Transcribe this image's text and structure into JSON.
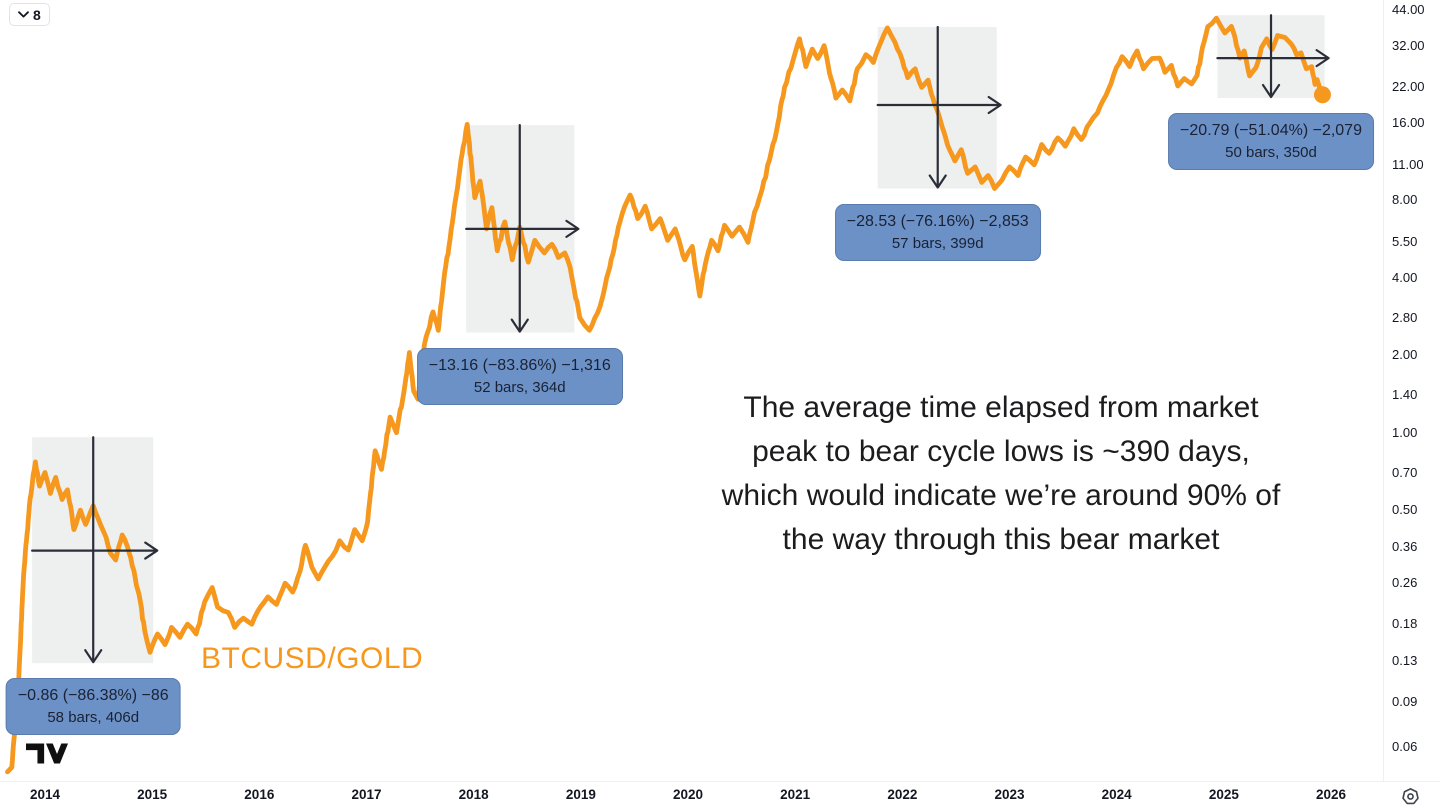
{
  "toolbar": {
    "badge": "8"
  },
  "annotations": {
    "symbol_label": "BTCUSD/GOLD",
    "note_lines": [
      "The average time elapsed from market",
      "peak to bear cycle lows is ~390 days,",
      "which would indicate we’re around 90% of",
      "the way through this bear market"
    ]
  },
  "measurements": [
    {
      "line1": "−0.86 (−86.38%) −86",
      "line2": "58 bars, 406d",
      "x1": 2013.88,
      "x2": 2015.01,
      "price_top": 0.96,
      "price_bottom": 0.127,
      "vline_year": 2014.45,
      "hline_price": 0.348
    },
    {
      "line1": "−13.16 (−83.86%) −1,316",
      "line2": "52 bars, 364d",
      "x1": 2017.93,
      "x2": 2018.94,
      "price_top": 15.7,
      "price_bottom": 2.45,
      "vline_year": 2018.43,
      "hline_price": 6.2
    },
    {
      "line1": "−28.53 (−76.16%) −2,853",
      "line2": "57 bars, 399d",
      "x1": 2021.77,
      "x2": 2022.88,
      "price_top": 37.8,
      "price_bottom": 8.9,
      "vline_year": 2022.33,
      "hline_price": 18.8
    },
    {
      "line1": "−20.79 (−51.04%) −2,079",
      "line2": "50 bars, 350d",
      "x1": 2024.94,
      "x2": 2025.94,
      "price_top": 42.0,
      "price_bottom": 20.0,
      "vline_year": 2025.44,
      "hline_price": 28.6
    }
  ],
  "colors": {
    "series": "#f5981d",
    "label_bg": "#6b91c7",
    "label_text": "#1b2133",
    "arrow": "#2a2e39",
    "region_fill": "rgba(30,34,45,0.075)",
    "axis_text": "#131722"
  },
  "chart_data": {
    "type": "line",
    "title": "",
    "xlabel": "",
    "ylabel": "",
    "scale": "log",
    "grid": false,
    "legend_position": "none",
    "x_range": [
      2013.6,
      2026.45
    ],
    "y_range": [
      0.05,
      47
    ],
    "x_ticks": [
      {
        "label": "2014",
        "value": 2014
      },
      {
        "label": "2015",
        "value": 2015
      },
      {
        "label": "2016",
        "value": 2016
      },
      {
        "label": "2017",
        "value": 2017
      },
      {
        "label": "2018",
        "value": 2018
      },
      {
        "label": "2019",
        "value": 2019
      },
      {
        "label": "2020",
        "value": 2020
      },
      {
        "label": "2021",
        "value": 2021
      },
      {
        "label": "2022",
        "value": 2022
      },
      {
        "label": "2023",
        "value": 2023
      },
      {
        "label": "2024",
        "value": 2024
      },
      {
        "label": "2025",
        "value": 2025
      },
      {
        "label": "2026",
        "value": 2026
      }
    ],
    "y_ticks": [
      {
        "label": "44.00",
        "value": 44
      },
      {
        "label": "32.00",
        "value": 32
      },
      {
        "label": "22.00",
        "value": 22
      },
      {
        "label": "16.00",
        "value": 16
      },
      {
        "label": "11.00",
        "value": 11
      },
      {
        "label": "8.00",
        "value": 8
      },
      {
        "label": "5.50",
        "value": 5.5
      },
      {
        "label": "4.00",
        "value": 4
      },
      {
        "label": "2.80",
        "value": 2.8
      },
      {
        "label": "2.00",
        "value": 2
      },
      {
        "label": "1.40",
        "value": 1.4
      },
      {
        "label": "1.00",
        "value": 1
      },
      {
        "label": "0.70",
        "value": 0.7
      },
      {
        "label": "0.50",
        "value": 0.5
      },
      {
        "label": "0.36",
        "value": 0.36
      },
      {
        "label": "0.26",
        "value": 0.26
      },
      {
        "label": "0.18",
        "value": 0.18
      },
      {
        "label": "0.13",
        "value": 0.13
      },
      {
        "label": "0.09",
        "value": 0.09
      },
      {
        "label": "0.06",
        "value": 0.06
      }
    ],
    "series": [
      {
        "name": "BTCUSD/GOLD",
        "color": "#f5981d",
        "points": [
          [
            2013.65,
            0.048
          ],
          [
            2013.69,
            0.05
          ],
          [
            2013.75,
            0.1
          ],
          [
            2013.8,
            0.28
          ],
          [
            2013.86,
            0.55
          ],
          [
            2013.91,
            0.77
          ],
          [
            2013.95,
            0.62
          ],
          [
            2014.0,
            0.7
          ],
          [
            2014.05,
            0.58
          ],
          [
            2014.1,
            0.67
          ],
          [
            2014.16,
            0.55
          ],
          [
            2014.21,
            0.6
          ],
          [
            2014.27,
            0.42
          ],
          [
            2014.33,
            0.5
          ],
          [
            2014.38,
            0.44
          ],
          [
            2014.45,
            0.52
          ],
          [
            2014.49,
            0.47
          ],
          [
            2014.55,
            0.41
          ],
          [
            2014.61,
            0.34
          ],
          [
            2014.66,
            0.32
          ],
          [
            2014.72,
            0.4
          ],
          [
            2014.77,
            0.36
          ],
          [
            2014.83,
            0.29
          ],
          [
            2014.89,
            0.22
          ],
          [
            2014.93,
            0.17
          ],
          [
            2014.98,
            0.14
          ],
          [
            2015.05,
            0.165
          ],
          [
            2015.12,
            0.15
          ],
          [
            2015.18,
            0.175
          ],
          [
            2015.26,
            0.16
          ],
          [
            2015.33,
            0.18
          ],
          [
            2015.41,
            0.165
          ],
          [
            2015.49,
            0.22
          ],
          [
            2015.56,
            0.25
          ],
          [
            2015.61,
            0.21
          ],
          [
            2015.71,
            0.2
          ],
          [
            2015.77,
            0.175
          ],
          [
            2015.85,
            0.19
          ],
          [
            2015.93,
            0.18
          ],
          [
            2016.01,
            0.21
          ],
          [
            2016.08,
            0.23
          ],
          [
            2016.16,
            0.215
          ],
          [
            2016.24,
            0.26
          ],
          [
            2016.31,
            0.24
          ],
          [
            2016.38,
            0.29
          ],
          [
            2016.43,
            0.365
          ],
          [
            2016.49,
            0.3
          ],
          [
            2016.55,
            0.27
          ],
          [
            2016.61,
            0.3
          ],
          [
            2016.68,
            0.33
          ],
          [
            2016.75,
            0.38
          ],
          [
            2016.83,
            0.35
          ],
          [
            2016.89,
            0.42
          ],
          [
            2016.96,
            0.38
          ],
          [
            2017.01,
            0.45
          ],
          [
            2017.08,
            0.85
          ],
          [
            2017.14,
            0.72
          ],
          [
            2017.22,
            1.15
          ],
          [
            2017.28,
            1.0
          ],
          [
            2017.36,
            1.55
          ],
          [
            2017.4,
            2.05
          ],
          [
            2017.44,
            1.45
          ],
          [
            2017.48,
            1.35
          ],
          [
            2017.54,
            2.2
          ],
          [
            2017.62,
            2.95
          ],
          [
            2017.67,
            2.5
          ],
          [
            2017.73,
            4.2
          ],
          [
            2017.8,
            6.5
          ],
          [
            2017.85,
            9.0
          ],
          [
            2017.89,
            12.0
          ],
          [
            2017.94,
            15.8
          ],
          [
            2017.98,
            11.0
          ],
          [
            2018.01,
            8.2
          ],
          [
            2018.06,
            9.5
          ],
          [
            2018.12,
            6.2
          ],
          [
            2018.17,
            7.5
          ],
          [
            2018.22,
            5.1
          ],
          [
            2018.29,
            6.6
          ],
          [
            2018.36,
            4.7
          ],
          [
            2018.43,
            6.3
          ],
          [
            2018.51,
            4.6
          ],
          [
            2018.57,
            5.6
          ],
          [
            2018.66,
            5.0
          ],
          [
            2018.73,
            5.4
          ],
          [
            2018.79,
            4.8
          ],
          [
            2018.85,
            5.0
          ],
          [
            2018.9,
            4.4
          ],
          [
            2018.99,
            2.8
          ],
          [
            2019.08,
            2.5
          ],
          [
            2019.18,
            3.1
          ],
          [
            2019.27,
            4.4
          ],
          [
            2019.35,
            6.3
          ],
          [
            2019.41,
            7.6
          ],
          [
            2019.46,
            8.4
          ],
          [
            2019.53,
            6.8
          ],
          [
            2019.6,
            7.6
          ],
          [
            2019.66,
            6.2
          ],
          [
            2019.74,
            6.8
          ],
          [
            2019.81,
            5.6
          ],
          [
            2019.88,
            6.2
          ],
          [
            2019.97,
            4.7
          ],
          [
            2020.04,
            5.3
          ],
          [
            2020.11,
            3.4
          ],
          [
            2020.16,
            4.5
          ],
          [
            2020.22,
            5.6
          ],
          [
            2020.28,
            5.1
          ],
          [
            2020.34,
            6.4
          ],
          [
            2020.41,
            5.8
          ],
          [
            2020.48,
            6.3
          ],
          [
            2020.56,
            5.5
          ],
          [
            2020.62,
            7.2
          ],
          [
            2020.69,
            8.8
          ],
          [
            2020.76,
            11.5
          ],
          [
            2020.84,
            16
          ],
          [
            2020.9,
            22
          ],
          [
            2020.98,
            28
          ],
          [
            2021.04,
            34
          ],
          [
            2021.1,
            26.5
          ],
          [
            2021.16,
            31
          ],
          [
            2021.21,
            28.5
          ],
          [
            2021.27,
            32
          ],
          [
            2021.32,
            25
          ],
          [
            2021.38,
            20
          ],
          [
            2021.44,
            21.5
          ],
          [
            2021.51,
            19.5
          ],
          [
            2021.58,
            26
          ],
          [
            2021.66,
            29.5
          ],
          [
            2021.73,
            27.5
          ],
          [
            2021.8,
            33
          ],
          [
            2021.86,
            37.5
          ],
          [
            2021.93,
            33
          ],
          [
            2022.0,
            28
          ],
          [
            2022.05,
            24
          ],
          [
            2022.12,
            26
          ],
          [
            2022.18,
            22
          ],
          [
            2022.24,
            23.5
          ],
          [
            2022.3,
            19
          ],
          [
            2022.37,
            15.5
          ],
          [
            2022.42,
            13.2
          ],
          [
            2022.49,
            11.4
          ],
          [
            2022.55,
            12.6
          ],
          [
            2022.61,
            10.2
          ],
          [
            2022.68,
            10.8
          ],
          [
            2022.74,
            9.4
          ],
          [
            2022.8,
            10.0
          ],
          [
            2022.86,
            8.9
          ],
          [
            2022.93,
            9.6
          ],
          [
            2023.0,
            10.8
          ],
          [
            2023.08,
            10.0
          ],
          [
            2023.15,
            11.8
          ],
          [
            2023.23,
            11.0
          ],
          [
            2023.3,
            13.2
          ],
          [
            2023.37,
            12.2
          ],
          [
            2023.45,
            14.0
          ],
          [
            2023.52,
            13.0
          ],
          [
            2023.6,
            15.2
          ],
          [
            2023.67,
            13.8
          ],
          [
            2023.75,
            16.0
          ],
          [
            2023.82,
            17.5
          ],
          [
            2023.9,
            20.5
          ],
          [
            2023.97,
            24.5
          ],
          [
            2024.05,
            29.0
          ],
          [
            2024.12,
            26.5
          ],
          [
            2024.19,
            30.5
          ],
          [
            2024.25,
            26.0
          ],
          [
            2024.33,
            28.5
          ],
          [
            2024.4,
            28.6
          ],
          [
            2024.45,
            25.2
          ],
          [
            2024.51,
            26.8
          ],
          [
            2024.57,
            22.3
          ],
          [
            2024.63,
            23.8
          ],
          [
            2024.7,
            22.7
          ],
          [
            2024.75,
            24.5
          ],
          [
            2024.8,
            31.4
          ],
          [
            2024.85,
            37.9
          ],
          [
            2024.93,
            40.9
          ],
          [
            2025.01,
            35.8
          ],
          [
            2025.07,
            38.0
          ],
          [
            2025.15,
            28.6
          ],
          [
            2025.19,
            30.5
          ],
          [
            2025.24,
            24.4
          ],
          [
            2025.3,
            26.3
          ],
          [
            2025.35,
            31.4
          ],
          [
            2025.4,
            34.0
          ],
          [
            2025.45,
            30.9
          ],
          [
            2025.5,
            35.0
          ],
          [
            2025.57,
            34.4
          ],
          [
            2025.63,
            32.4
          ],
          [
            2025.68,
            29.4
          ],
          [
            2025.72,
            30.0
          ],
          [
            2025.77,
            26.0
          ],
          [
            2025.82,
            26.5
          ],
          [
            2025.85,
            22.6
          ],
          [
            2025.87,
            23.6
          ],
          [
            2025.92,
            20.6
          ]
        ]
      }
    ]
  }
}
